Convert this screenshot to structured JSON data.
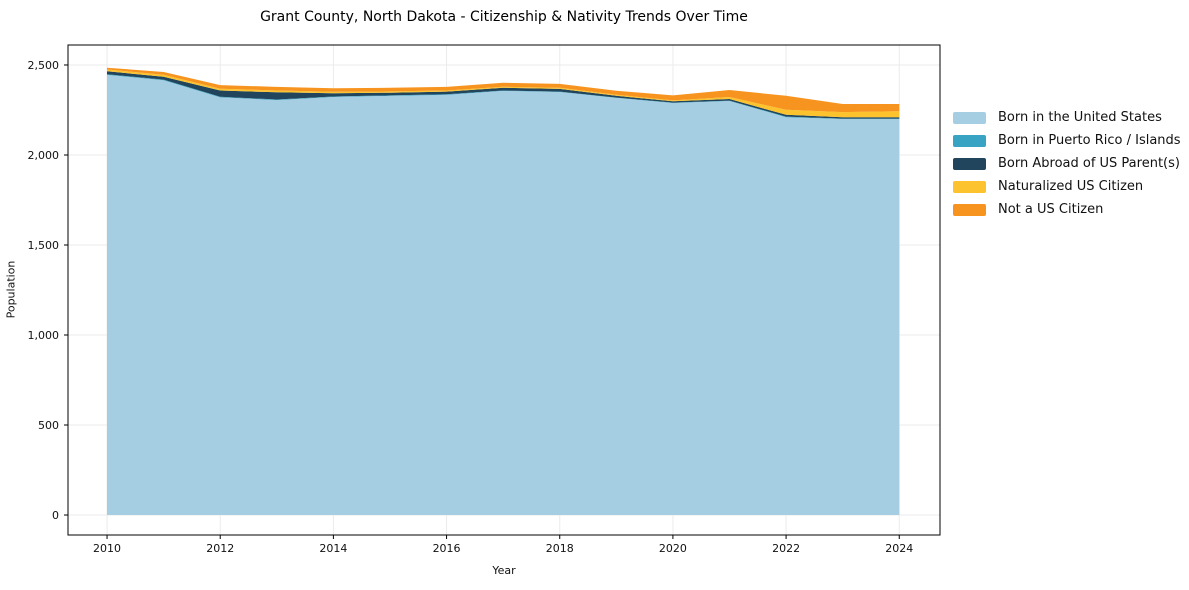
{
  "title": "Grant County, North Dakota - Citizenship & Nativity Trends Over Time",
  "chart_data": {
    "type": "area",
    "stacked": true,
    "title": "Grant County, North Dakota - Citizenship & Nativity Trends Over Time",
    "xlabel": "Year",
    "ylabel": "Population",
    "x": [
      2010,
      2011,
      2012,
      2013,
      2014,
      2015,
      2016,
      2017,
      2018,
      2019,
      2020,
      2021,
      2022,
      2023,
      2024
    ],
    "series": [
      {
        "name": "Born in the United States",
        "color": "#a6cee3",
        "values": [
          2445,
          2415,
          2320,
          2305,
          2322,
          2328,
          2334,
          2356,
          2350,
          2317,
          2289,
          2300,
          2210,
          2200,
          2200
        ]
      },
      {
        "name": "Born in Puerto Rico / Islands",
        "color": "#38a3c3",
        "values": [
          4,
          4,
          3,
          3,
          3,
          3,
          3,
          2,
          2,
          2,
          2,
          2,
          3,
          2,
          2
        ]
      },
      {
        "name": "Born Abroad of US Parent(s)",
        "color": "#20455c",
        "values": [
          16,
          16,
          35,
          40,
          18,
          15,
          15,
          15,
          15,
          10,
          7,
          9,
          10,
          8,
          8
        ]
      },
      {
        "name": "Naturalized US Citizen",
        "color": "#fcc32e",
        "values": [
          10,
          11,
          10,
          10,
          8,
          7,
          6,
          6,
          6,
          6,
          5,
          11,
          28,
          28,
          33
        ]
      },
      {
        "name": "Not a US Citizen",
        "color": "#f7941f",
        "values": [
          10,
          15,
          20,
          20,
          20,
          20,
          20,
          22,
          22,
          22,
          28,
          39,
          78,
          45,
          40
        ]
      }
    ],
    "x_ticks": [
      2010,
      2012,
      2014,
      2016,
      2018,
      2020,
      2022,
      2024
    ],
    "y_ticks": [
      0,
      500,
      1000,
      1500,
      2000,
      2500
    ],
    "y_tick_labels": [
      "0",
      "500",
      "1,000",
      "1,500",
      "2,000",
      "2,500"
    ],
    "xlim": [
      2009.31,
      2024.72
    ],
    "ylim": [
      -111,
      2611
    ],
    "grid": true,
    "grid_color": "#ebebeb",
    "frame_color": "#000000",
    "tick_label_color": "#111111",
    "legend_position": "right"
  }
}
